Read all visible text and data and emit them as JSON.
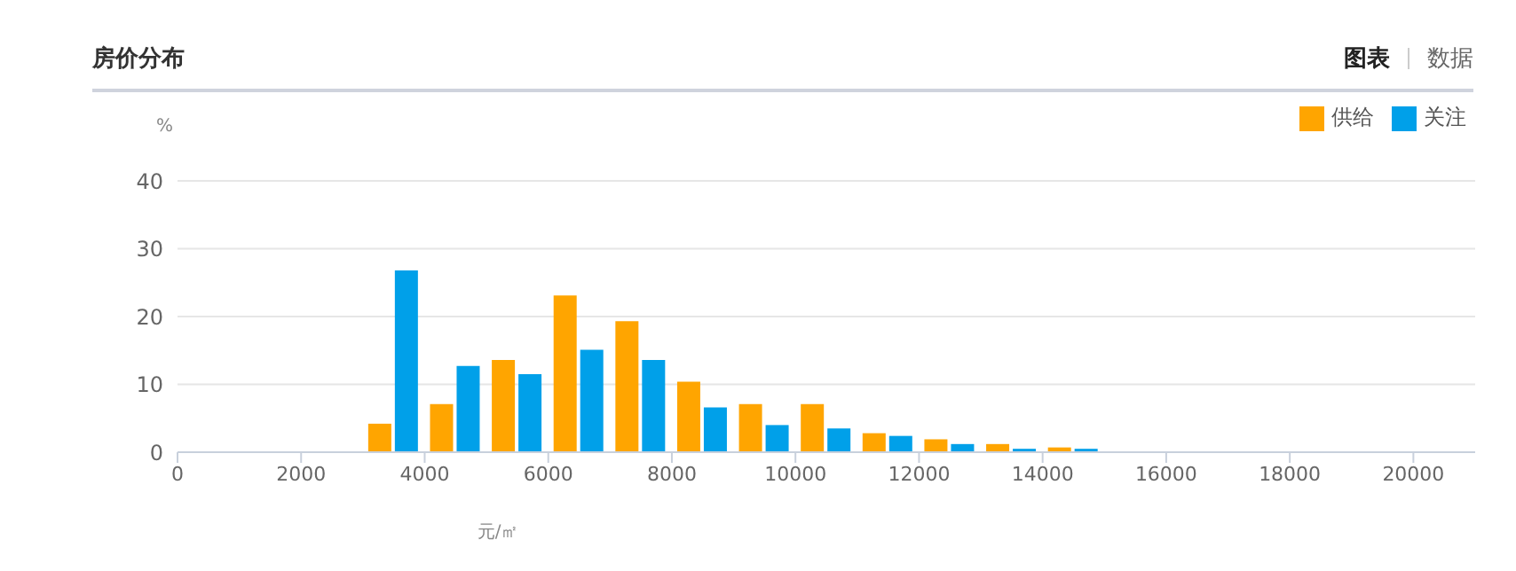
{
  "chart_data": {
    "type": "bar",
    "title": "房价分布",
    "annotations": [
      "图表",
      "数据"
    ],
    "xlabel": "元/㎡",
    "ylabel": "%",
    "x": [
      3500,
      4500,
      5500,
      6500,
      7500,
      8500,
      9500,
      10500,
      11500,
      12500,
      13500,
      14500
    ],
    "series": [
      {
        "name": "供给",
        "color": "#ffa500",
        "values": [
          4.2,
          7.1,
          13.6,
          23.1,
          19.3,
          10.4,
          7.1,
          7.1,
          2.8,
          1.9,
          1.2,
          0.7
        ]
      },
      {
        "name": "关注",
        "color": "#00a0e9",
        "values": [
          26.8,
          12.7,
          11.5,
          15.1,
          13.6,
          6.6,
          4.0,
          3.5,
          2.4,
          1.2,
          0.5,
          0.5
        ]
      }
    ],
    "xlim": [
      0,
      21000
    ],
    "xticks": [
      0,
      2000,
      4000,
      6000,
      8000,
      10000,
      12000,
      14000,
      16000,
      18000,
      20000
    ],
    "ylim": [
      0,
      40
    ],
    "yticks": [
      0,
      10,
      20,
      30,
      40
    ],
    "grid": "y",
    "legend": "top right"
  }
}
